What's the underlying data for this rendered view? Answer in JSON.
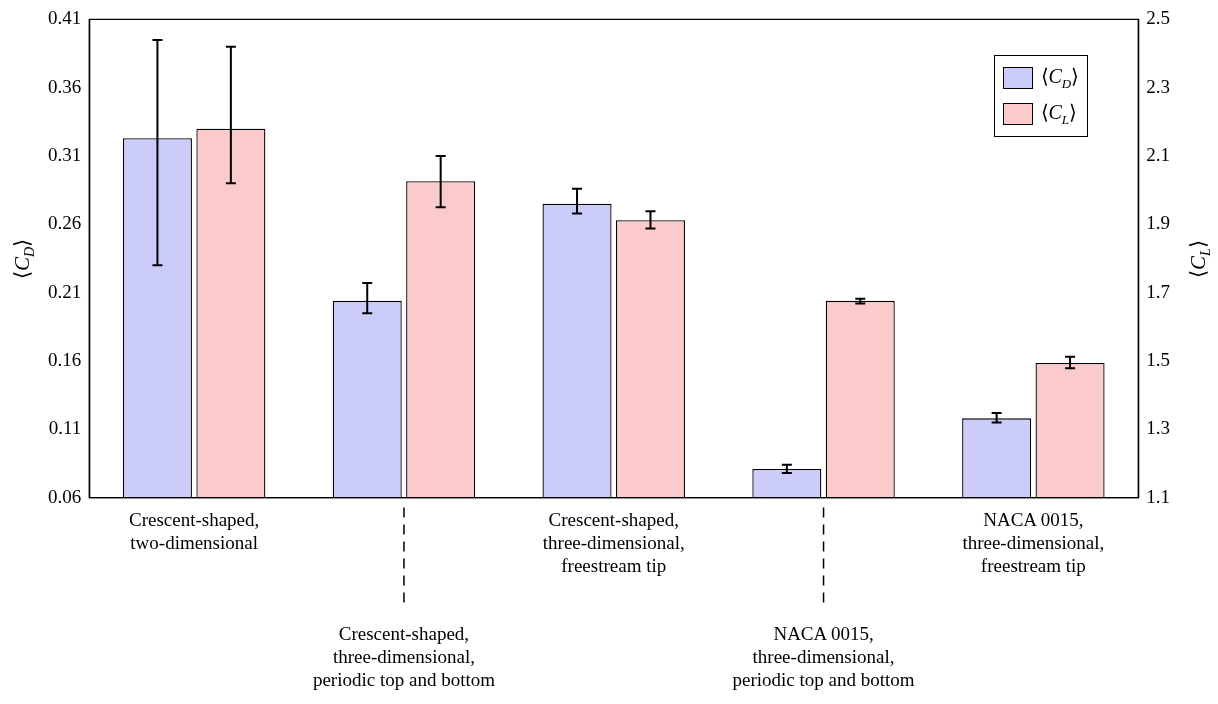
{
  "chart_data": {
    "type": "bar",
    "categories": [
      "Crescent-shaped, two-dimensional",
      "Crescent-shaped, three-dimensional, periodic top and bottom",
      "Crescent-shaped, three-dimensional, freestream tip",
      "NACA 0015, three-dimensional, periodic top and bottom",
      "NACA 0015, three-dimensional, freestream tip"
    ],
    "series": [
      {
        "name": "⟨C$_{D}$⟩",
        "color": "#ccccfb",
        "values": [
          0.323,
          0.204,
          0.275,
          0.081,
          0.118
        ],
        "errors": [
          [
            0.23,
            0.395
          ],
          [
            0.195,
            0.217
          ],
          [
            0.268,
            0.286
          ],
          [
            0.078,
            0.084
          ],
          [
            0.115,
            0.122
          ]
        ]
      },
      {
        "name": "⟨C$_{L}$⟩",
        "color": "#fbcaca",
        "axis": "y2",
        "values": [
          2.18,
          2.026,
          1.912,
          1.676,
          1.494
        ],
        "errors": [
          [
            2.02,
            2.42
          ],
          [
            1.95,
            2.1
          ],
          [
            1.888,
            1.938
          ],
          [
            1.668,
            1.682
          ],
          [
            1.479,
            1.512
          ]
        ]
      }
    ],
    "ylabel": "⟨C$_{D}$⟩",
    "y2label": "⟨C$_{L}$⟩",
    "ylim": [
      0.06,
      0.41
    ],
    "yticks": [
      0.06,
      0.11,
      0.16,
      0.21,
      0.26,
      0.31,
      0.36,
      0.41
    ],
    "y2lim": [
      1.1,
      2.5
    ],
    "y2ticks": [
      1.1,
      1.3,
      1.5,
      1.7,
      1.9,
      2.1,
      2.3,
      2.5
    ],
    "grid": false,
    "legend": "top right"
  }
}
